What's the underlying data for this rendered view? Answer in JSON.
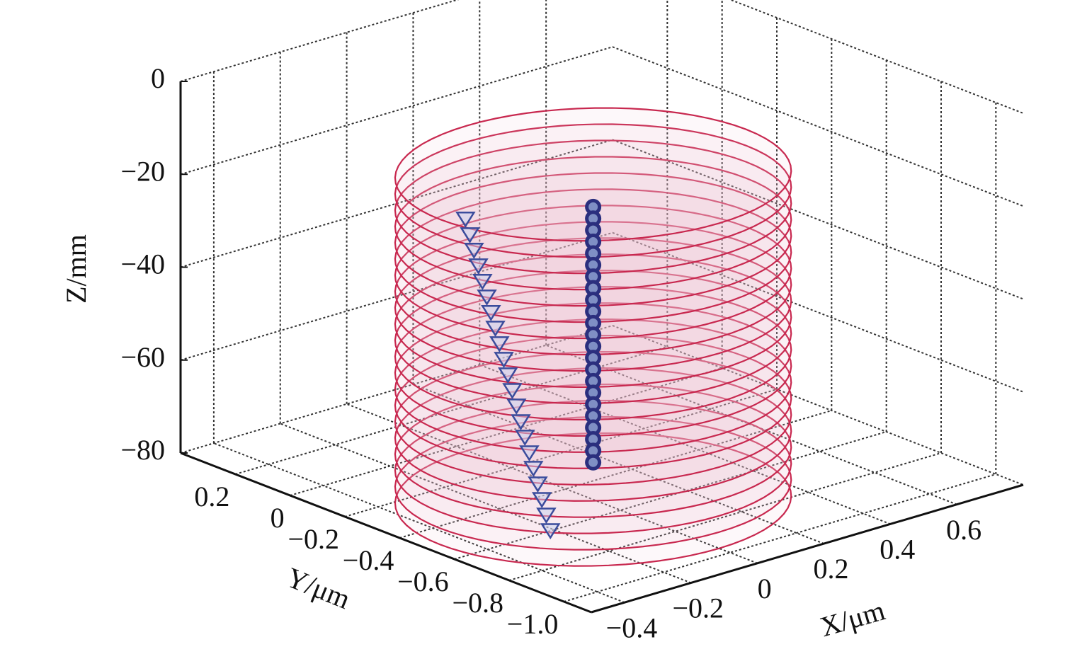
{
  "chart_data": {
    "type": "scatter3d",
    "xlabel": "X/μm",
    "ylabel": "Y/μm",
    "zlabel": "Z/mm",
    "xlim": [
      -0.5,
      0.8
    ],
    "ylim": [
      -1.1,
      0.4
    ],
    "zlim": [
      -80,
      0
    ],
    "xticks": [
      {
        "value": -0.4,
        "label": "−0.4"
      },
      {
        "value": -0.2,
        "label": "−0.2"
      },
      0,
      0.2,
      0.4,
      0.6
    ],
    "yticks": [
      0.2,
      0,
      {
        "value": -0.2,
        "label": "−0.2"
      },
      {
        "value": -0.4,
        "label": "−0.4"
      },
      {
        "value": -0.6,
        "label": "−0.6"
      },
      {
        "value": -0.8,
        "label": "−0.8"
      },
      {
        "value": -1.0,
        "label": "−1.0"
      }
    ],
    "zticks": [
      0,
      {
        "value": -20,
        "label": "−20"
      },
      {
        "value": -40,
        "label": "−40"
      },
      {
        "value": -60,
        "label": "−60"
      },
      {
        "value": -80,
        "label": "−80"
      }
    ],
    "grid": true,
    "series": [
      {
        "marker": "ring",
        "color": "#c8284f",
        "x": 0,
        "y": -0.5,
        "radius": 0.46,
        "z": [
          -80,
          -76.5,
          -73,
          -69.5,
          -66,
          -62.5,
          -59,
          -55.5,
          -52,
          -48.5,
          -45,
          -41.5,
          -38,
          -34.5,
          -31,
          -27.5,
          -24,
          -20.5,
          -17,
          -13.5,
          -10
        ]
      },
      {
        "marker": "o",
        "color": "#2b2f7e",
        "x": [
          0,
          0,
          0,
          0,
          0,
          0,
          0,
          0,
          0,
          0,
          0,
          0,
          0,
          0,
          0,
          0,
          0,
          0,
          0,
          0,
          0,
          0,
          0
        ],
        "y": [
          -0.5,
          -0.5,
          -0.5,
          -0.5,
          -0.5,
          -0.5,
          -0.5,
          -0.5,
          -0.5,
          -0.5,
          -0.5,
          -0.5,
          -0.5,
          -0.5,
          -0.5,
          -0.5,
          -0.5,
          -0.5,
          -0.5,
          -0.5,
          -0.5,
          -0.5,
          -0.5
        ],
        "z": [
          -17,
          -19.5,
          -22,
          -24.5,
          -27,
          -29.5,
          -32,
          -34.5,
          -37,
          -39.5,
          -42,
          -44.5,
          -47,
          -49.5,
          -52,
          -54.5,
          -57,
          -59.5,
          -62,
          -64.5,
          -67,
          -69.5,
          -72
        ]
      },
      {
        "marker": "v",
        "color": "#3b4c9c",
        "x": [
          -0.31,
          -0.31,
          -0.31,
          -0.31,
          -0.31,
          -0.31,
          -0.31,
          -0.31,
          -0.31,
          -0.31,
          -0.31,
          -0.31,
          -0.31,
          -0.31,
          -0.31,
          -0.31,
          -0.31,
          -0.31,
          -0.31,
          -0.31,
          -0.31
        ],
        "y": [
          -0.41,
          -0.426,
          -0.441,
          -0.457,
          -0.472,
          -0.488,
          -0.503,
          -0.519,
          -0.534,
          -0.55,
          -0.565,
          -0.581,
          -0.596,
          -0.612,
          -0.627,
          -0.643,
          -0.658,
          -0.674,
          -0.689,
          -0.705,
          -0.72
        ],
        "z": [
          -15,
          -18,
          -21,
          -24,
          -27,
          -30,
          -33,
          -36,
          -39,
          -42,
          -45,
          -48,
          -51,
          -54,
          -57,
          -60,
          -63,
          -66,
          -69,
          -72,
          -75
        ]
      }
    ]
  }
}
